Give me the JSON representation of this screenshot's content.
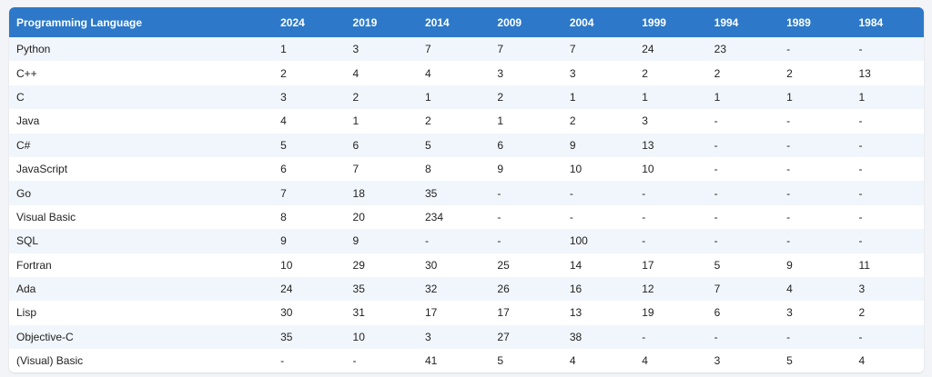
{
  "table": {
    "columns": [
      "Programming Language",
      "2024",
      "2019",
      "2014",
      "2009",
      "2004",
      "1999",
      "1994",
      "1989",
      "1984"
    ],
    "rows": [
      [
        "Python",
        "1",
        "3",
        "7",
        "7",
        "7",
        "24",
        "23",
        "-",
        "-"
      ],
      [
        "C++",
        "2",
        "4",
        "4",
        "3",
        "3",
        "2",
        "2",
        "2",
        "13"
      ],
      [
        "C",
        "3",
        "2",
        "1",
        "2",
        "1",
        "1",
        "1",
        "1",
        "1"
      ],
      [
        "Java",
        "4",
        "1",
        "2",
        "1",
        "2",
        "3",
        "-",
        "-",
        "-"
      ],
      [
        "C#",
        "5",
        "6",
        "5",
        "6",
        "9",
        "13",
        "-",
        "-",
        "-"
      ],
      [
        "JavaScript",
        "6",
        "7",
        "8",
        "9",
        "10",
        "10",
        "-",
        "-",
        "-"
      ],
      [
        "Go",
        "7",
        "18",
        "35",
        "-",
        "-",
        "-",
        "-",
        "-",
        "-"
      ],
      [
        "Visual Basic",
        "8",
        "20",
        "234",
        "-",
        "-",
        "-",
        "-",
        "-",
        "-"
      ],
      [
        "SQL",
        "9",
        "9",
        "-",
        "-",
        "100",
        "-",
        "-",
        "-",
        "-"
      ],
      [
        "Fortran",
        "10",
        "29",
        "30",
        "25",
        "14",
        "17",
        "5",
        "9",
        "11"
      ],
      [
        "Ada",
        "24",
        "35",
        "32",
        "26",
        "16",
        "12",
        "7",
        "4",
        "3"
      ],
      [
        "Lisp",
        "30",
        "31",
        "17",
        "17",
        "13",
        "19",
        "6",
        "3",
        "2"
      ],
      [
        "Objective-C",
        "35",
        "10",
        "3",
        "27",
        "38",
        "-",
        "-",
        "-",
        "-"
      ],
      [
        "(Visual) Basic",
        "-",
        "-",
        "41",
        "5",
        "4",
        "4",
        "3",
        "5",
        "4"
      ]
    ]
  },
  "colors": {
    "header_bg": "#2d78c8",
    "header_text": "#ffffff",
    "row_odd": "#f1f6fc",
    "row_even": "#ffffff"
  }
}
